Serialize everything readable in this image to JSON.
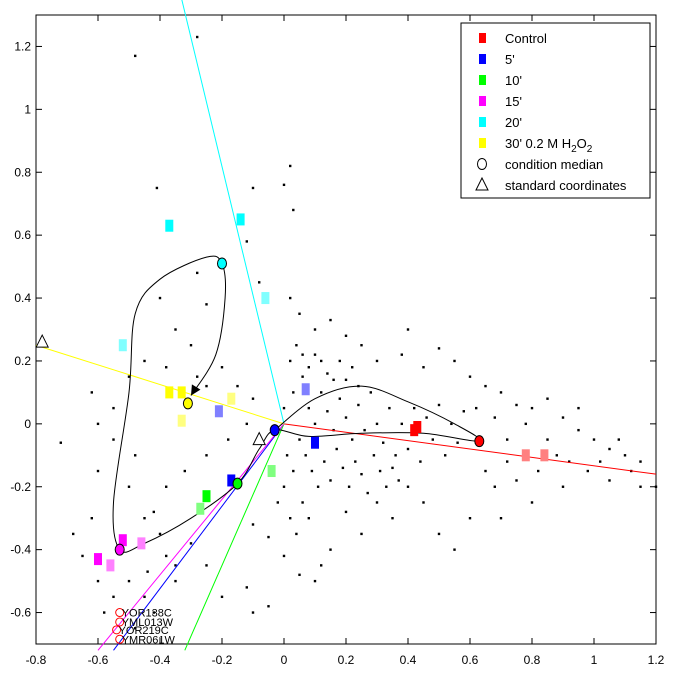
{
  "chart_data": {
    "type": "scatter",
    "title": "",
    "xlabel": "",
    "ylabel": "",
    "xlim": [
      -0.8,
      1.2
    ],
    "ylim": [
      -0.7,
      1.3
    ],
    "grid": false,
    "legend_position": "top-right",
    "x_ticks": [
      "-0.8",
      "-0.6",
      "-0.4",
      "-0.2",
      "0",
      "0.2",
      "0.4",
      "0.6",
      "0.8",
      "1",
      "1.2"
    ],
    "y_ticks": [
      "1.2",
      "1",
      "0.8",
      "0.6",
      "0.4",
      "0.2",
      "0",
      "-0.2",
      "-0.4",
      "-0.6"
    ],
    "legend": [
      {
        "label": "Control",
        "color": "#ff0000",
        "marker": "square"
      },
      {
        "label": "5'",
        "color": "#0000ff",
        "marker": "square"
      },
      {
        "label": "10'",
        "color": "#00ff00",
        "marker": "square"
      },
      {
        "label": "15'",
        "color": "#ff00ff",
        "marker": "square"
      },
      {
        "label": "20'",
        "color": "#00ffff",
        "marker": "square"
      },
      {
        "label": "30' 0.2 M  H2O2",
        "color": "#ffff00",
        "marker": "square"
      },
      {
        "label": "condition median",
        "color": "#000000",
        "marker": "circle"
      },
      {
        "label": "standard coordinates",
        "color": "#000000",
        "marker": "triangle"
      }
    ],
    "condition_points": [
      {
        "condition": "Control",
        "color": "#ff0000",
        "points": [
          [
            0.42,
            -0.02
          ],
          [
            0.43,
            -0.01
          ]
        ]
      },
      {
        "condition": "Control",
        "color": "#ff8080",
        "points": [
          [
            0.78,
            -0.1
          ],
          [
            0.84,
            -0.1
          ]
        ]
      },
      {
        "condition": "5'",
        "color": "#0000ff",
        "points": [
          [
            -0.17,
            -0.18
          ],
          [
            0.1,
            -0.06
          ]
        ]
      },
      {
        "condition": "5'",
        "color": "#8080ff",
        "points": [
          [
            -0.21,
            0.04
          ],
          [
            0.07,
            0.11
          ]
        ]
      },
      {
        "condition": "10'",
        "color": "#00ff00",
        "points": [
          [
            -0.25,
            -0.23
          ]
        ]
      },
      {
        "condition": "10'",
        "color": "#80ff80",
        "points": [
          [
            -0.27,
            -0.27
          ],
          [
            -0.04,
            -0.15
          ]
        ]
      },
      {
        "condition": "15'",
        "color": "#ff00ff",
        "points": [
          [
            -0.6,
            -0.43
          ],
          [
            -0.52,
            -0.37
          ]
        ]
      },
      {
        "condition": "15'",
        "color": "#ff80ff",
        "points": [
          [
            -0.56,
            -0.45
          ],
          [
            -0.46,
            -0.38
          ]
        ]
      },
      {
        "condition": "20'",
        "color": "#00ffff",
        "points": [
          [
            -0.37,
            0.63
          ],
          [
            -0.14,
            0.65
          ]
        ]
      },
      {
        "condition": "20'",
        "color": "#80ffff",
        "points": [
          [
            -0.52,
            0.25
          ],
          [
            -0.06,
            0.4
          ]
        ]
      },
      {
        "condition": "30' 0.2 M H2O2",
        "color": "#ffff00",
        "points": [
          [
            -0.37,
            0.1
          ],
          [
            -0.33,
            0.1
          ]
        ]
      },
      {
        "condition": "30' 0.2 M H2O2",
        "color": "#ffff80",
        "points": [
          [
            -0.33,
            0.01
          ],
          [
            -0.17,
            0.08
          ]
        ]
      }
    ],
    "condition_medians": [
      {
        "condition": "Control",
        "color": "#ff0000",
        "x": 0.63,
        "y": -0.055
      },
      {
        "condition": "5'",
        "color": "#0000ff",
        "x": -0.03,
        "y": -0.02
      },
      {
        "condition": "10'",
        "color": "#00ff00",
        "x": -0.15,
        "y": -0.19
      },
      {
        "condition": "15'",
        "color": "#ff00ff",
        "x": -0.53,
        "y": -0.4
      },
      {
        "condition": "20'",
        "color": "#00ffff",
        "x": -0.2,
        "y": 0.51
      },
      {
        "condition": "30' 0.2 M H2O2",
        "color": "#ffff00",
        "x": -0.31,
        "y": 0.065
      }
    ],
    "standard_coordinates": [
      {
        "x": -0.78,
        "y": 0.26
      },
      {
        "x": -0.08,
        "y": -0.05
      }
    ],
    "trajectory": [
      [
        -0.03,
        -0.02
      ],
      [
        0.1,
        0.08
      ],
      [
        0.25,
        0.12
      ],
      [
        0.4,
        0.07
      ],
      [
        0.55,
        0.0
      ],
      [
        0.63,
        -0.055
      ],
      [
        0.45,
        -0.03
      ],
      [
        0.25,
        -0.03
      ],
      [
        0.08,
        -0.04
      ],
      [
        -0.03,
        -0.02
      ],
      [
        -0.08,
        -0.08
      ],
      [
        -0.15,
        -0.19
      ],
      [
        -0.3,
        -0.3
      ],
      [
        -0.45,
        -0.38
      ],
      [
        -0.53,
        -0.4
      ],
      [
        -0.55,
        -0.25
      ],
      [
        -0.5,
        0.1
      ],
      [
        -0.48,
        0.35
      ],
      [
        -0.4,
        0.46
      ],
      [
        -0.25,
        0.53
      ],
      [
        -0.2,
        0.51
      ],
      [
        -0.19,
        0.4
      ],
      [
        -0.22,
        0.22
      ],
      [
        -0.3,
        0.09
      ]
    ],
    "rays": [
      {
        "color": "#ff0000",
        "to": [
          1.2,
          -0.16
        ]
      },
      {
        "color": "#0000ff",
        "to": [
          -0.55,
          -0.72
        ]
      },
      {
        "color": "#00ff00",
        "to": [
          -0.32,
          -0.72
        ]
      },
      {
        "color": "#ff00ff",
        "to": [
          -0.6,
          -0.72
        ]
      },
      {
        "color": "#00ffff",
        "to": [
          -0.33,
          1.35
        ]
      },
      {
        "color": "#ffff00",
        "to": [
          -0.8,
          0.25
        ]
      }
    ],
    "gene_labels": [
      {
        "text": "YOR138C",
        "x": -0.53,
        "y": -0.6
      },
      {
        "text": "YML013W",
        "x": -0.53,
        "y": -0.63
      },
      {
        "text": "YOR219C",
        "x": -0.54,
        "y": -0.655
      },
      {
        "text": "YMR061W",
        "x": -0.53,
        "y": -0.685
      }
    ],
    "background_points": [
      [
        0.0,
        0.76
      ],
      [
        -0.48,
        1.17
      ],
      [
        -0.28,
        1.23
      ],
      [
        -0.1,
        0.75
      ],
      [
        0.02,
        0.82
      ],
      [
        0.03,
        0.68
      ],
      [
        -0.41,
        0.75
      ],
      [
        -0.12,
        0.58
      ],
      [
        -0.28,
        0.48
      ],
      [
        -0.25,
        0.38
      ],
      [
        -0.08,
        0.45
      ],
      [
        0.02,
        0.4
      ],
      [
        0.05,
        0.35
      ],
      [
        0.1,
        0.3
      ],
      [
        0.15,
        0.33
      ],
      [
        0.2,
        0.28
      ],
      [
        0.25,
        0.25
      ],
      [
        0.3,
        0.2
      ],
      [
        0.4,
        0.3
      ],
      [
        0.38,
        0.22
      ],
      [
        0.45,
        0.18
      ],
      [
        0.5,
        0.24
      ],
      [
        0.55,
        0.2
      ],
      [
        0.6,
        0.15
      ],
      [
        0.65,
        0.12
      ],
      [
        0.7,
        0.1
      ],
      [
        0.75,
        0.06
      ],
      [
        0.8,
        0.05
      ],
      [
        0.85,
        0.08
      ],
      [
        0.9,
        0.02
      ],
      [
        0.95,
        -0.02
      ],
      [
        1.0,
        -0.05
      ],
      [
        1.05,
        -0.08
      ],
      [
        1.1,
        -0.1
      ],
      [
        1.15,
        -0.2
      ],
      [
        1.2,
        -0.2
      ],
      [
        1.12,
        -0.15
      ],
      [
        1.05,
        -0.18
      ],
      [
        0.9,
        -0.2
      ],
      [
        0.8,
        -0.25
      ],
      [
        0.7,
        -0.3
      ],
      [
        0.6,
        -0.3
      ],
      [
        0.55,
        -0.4
      ],
      [
        0.5,
        -0.35
      ],
      [
        0.45,
        -0.25
      ],
      [
        0.4,
        -0.2
      ],
      [
        0.35,
        -0.3
      ],
      [
        0.3,
        -0.25
      ],
      [
        0.25,
        -0.35
      ],
      [
        0.2,
        -0.28
      ],
      [
        0.15,
        -0.4
      ],
      [
        0.12,
        -0.45
      ],
      [
        0.1,
        -0.5
      ],
      [
        0.05,
        -0.48
      ],
      [
        0.0,
        -0.42
      ],
      [
        -0.05,
        -0.36
      ],
      [
        -0.1,
        -0.32
      ],
      [
        -0.12,
        -0.52
      ],
      [
        -0.05,
        -0.58
      ],
      [
        -0.1,
        -0.6
      ],
      [
        -0.2,
        -0.55
      ],
      [
        -0.25,
        -0.45
      ],
      [
        -0.3,
        -0.38
      ],
      [
        -0.35,
        -0.45
      ],
      [
        -0.4,
        -0.35
      ],
      [
        -0.45,
        -0.3
      ],
      [
        -0.5,
        -0.2
      ],
      [
        -0.48,
        -0.1
      ],
      [
        -0.55,
        -0.05
      ],
      [
        -0.6,
        -0.15
      ],
      [
        -0.62,
        -0.3
      ],
      [
        -0.68,
        -0.35
      ],
      [
        -0.65,
        -0.42
      ],
      [
        -0.72,
        -0.06
      ],
      [
        -0.62,
        0.1
      ],
      [
        -0.6,
        0.0
      ],
      [
        -0.55,
        0.05
      ],
      [
        -0.5,
        0.15
      ],
      [
        -0.45,
        0.2
      ],
      [
        -0.38,
        0.18
      ],
      [
        -0.35,
        0.3
      ],
      [
        -0.4,
        0.4
      ],
      [
        -0.3,
        0.25
      ],
      [
        -0.28,
        0.15
      ],
      [
        -0.25,
        0.12
      ],
      [
        -0.2,
        0.18
      ],
      [
        -0.15,
        0.12
      ],
      [
        -0.1,
        0.08
      ],
      [
        -0.12,
        0.0
      ],
      [
        -0.18,
        -0.05
      ],
      [
        -0.25,
        -0.1
      ],
      [
        -0.32,
        -0.15
      ],
      [
        -0.38,
        -0.2
      ],
      [
        -0.42,
        -0.28
      ],
      [
        -0.35,
        -0.5
      ],
      [
        -0.45,
        -0.55
      ],
      [
        -0.5,
        -0.5
      ],
      [
        -0.42,
        -0.6
      ],
      [
        0.0,
        0.05
      ],
      [
        0.03,
        0.1
      ],
      [
        0.06,
        0.15
      ],
      [
        0.08,
        0.05
      ],
      [
        0.1,
        0.0
      ],
      [
        0.12,
        0.1
      ],
      [
        0.14,
        0.04
      ],
      [
        0.16,
        -0.02
      ],
      [
        0.18,
        0.08
      ],
      [
        0.2,
        0.02
      ],
      [
        0.22,
        -0.05
      ],
      [
        0.24,
        0.06
      ],
      [
        0.26,
        -0.02
      ],
      [
        0.28,
        0.1
      ],
      [
        0.3,
        0.0
      ],
      [
        0.32,
        -0.06
      ],
      [
        0.34,
        0.05
      ],
      [
        0.36,
        -0.1
      ],
      [
        0.38,
        0.0
      ],
      [
        0.4,
        -0.08
      ],
      [
        0.42,
        0.05
      ],
      [
        0.44,
        -0.12
      ],
      [
        0.46,
        0.02
      ],
      [
        0.48,
        -0.05
      ],
      [
        0.5,
        0.06
      ],
      [
        0.52,
        -0.1
      ],
      [
        0.54,
        0.0
      ],
      [
        0.56,
        -0.06
      ],
      [
        0.58,
        0.04
      ],
      [
        0.05,
        -0.05
      ],
      [
        0.07,
        -0.1
      ],
      [
        0.09,
        -0.15
      ],
      [
        0.11,
        -0.2
      ],
      [
        0.13,
        -0.12
      ],
      [
        0.15,
        -0.18
      ],
      [
        0.17,
        -0.08
      ],
      [
        0.19,
        -0.14
      ],
      [
        0.21,
        -0.2
      ],
      [
        0.23,
        -0.12
      ],
      [
        0.25,
        -0.16
      ],
      [
        0.27,
        -0.22
      ],
      [
        0.29,
        -0.1
      ],
      [
        0.31,
        -0.15
      ],
      [
        0.33,
        -0.2
      ],
      [
        0.35,
        -0.14
      ],
      [
        0.37,
        -0.18
      ],
      [
        0.02,
        0.2
      ],
      [
        0.04,
        0.25
      ],
      [
        0.06,
        0.22
      ],
      [
        0.08,
        0.18
      ],
      [
        0.1,
        0.22
      ],
      [
        0.12,
        0.2
      ],
      [
        0.14,
        0.16
      ],
      [
        0.16,
        0.14
      ],
      [
        0.18,
        0.2
      ],
      [
        0.2,
        0.14
      ],
      [
        0.22,
        0.18
      ],
      [
        0.24,
        0.12
      ],
      [
        0.01,
        -0.1
      ],
      [
        0.03,
        -0.15
      ],
      [
        0.0,
        -0.2
      ],
      [
        -0.02,
        -0.25
      ],
      [
        0.02,
        -0.3
      ],
      [
        0.06,
        -0.25
      ],
      [
        0.08,
        -0.3
      ],
      [
        0.04,
        -0.35
      ],
      [
        -0.6,
        -0.5
      ],
      [
        -0.55,
        -0.55
      ],
      [
        -0.58,
        -0.6
      ],
      [
        -0.48,
        -0.65
      ],
      [
        -0.44,
        -0.47
      ],
      [
        -0.38,
        -0.42
      ],
      [
        0.65,
        -0.15
      ],
      [
        0.68,
        -0.2
      ],
      [
        0.72,
        -0.12
      ],
      [
        0.75,
        -0.18
      ],
      [
        0.82,
        -0.15
      ],
      [
        0.88,
        -0.1
      ],
      [
        0.92,
        -0.12
      ],
      [
        0.98,
        -0.15
      ],
      [
        1.02,
        -0.12
      ],
      [
        1.08,
        -0.05
      ],
      [
        1.15,
        -0.12
      ],
      [
        0.62,
        0.05
      ],
      [
        0.68,
        0.02
      ],
      [
        0.72,
        -0.05
      ],
      [
        0.78,
        0.0
      ],
      [
        0.85,
        -0.05
      ],
      [
        0.95,
        0.05
      ]
    ]
  }
}
